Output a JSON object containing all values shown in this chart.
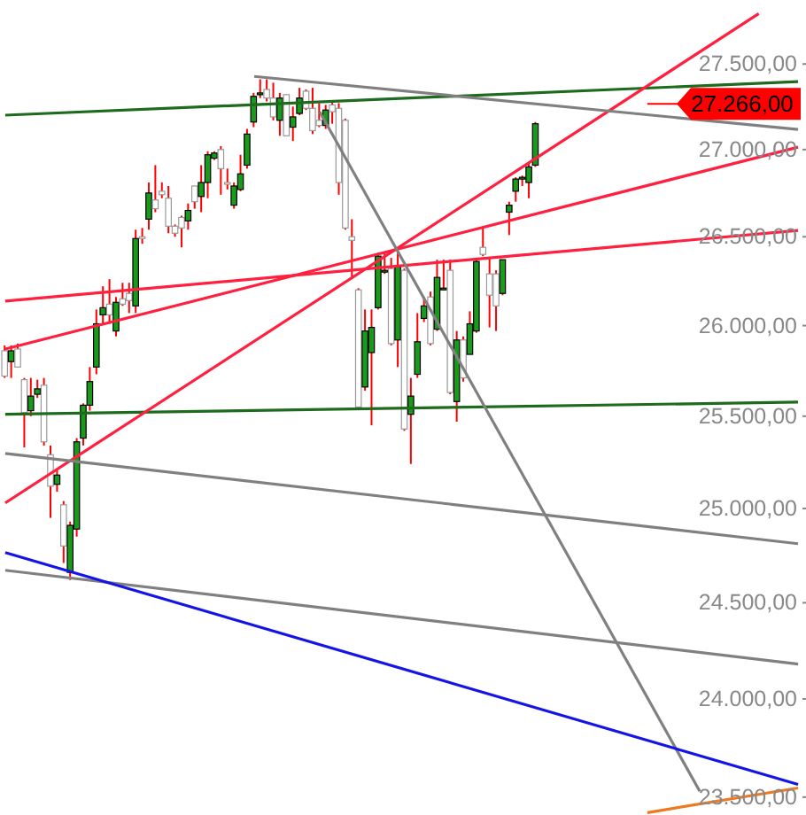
{
  "chart_data": {
    "type": "candlestick",
    "log": true,
    "grid": false,
    "legend": false,
    "tick_labels": "y",
    "categories": [
      null,
      null,
      null,
      null,
      null,
      null,
      null,
      null,
      null,
      null,
      null,
      null,
      null,
      null,
      null,
      null,
      null,
      null,
      null,
      null,
      null,
      null,
      null,
      null,
      null,
      null,
      null,
      null,
      null,
      null,
      null,
      null,
      null,
      null,
      null,
      null,
      null,
      null,
      null,
      null,
      null,
      null,
      null,
      null,
      null,
      null,
      null,
      null,
      null,
      null,
      null,
      null,
      null,
      null,
      null,
      null,
      null,
      null,
      null,
      null,
      null,
      null,
      null,
      null,
      null,
      null,
      null,
      null,
      null,
      null,
      null,
      null,
      null,
      null,
      null,
      null,
      null,
      null,
      null,
      null,
      null,
      null,
      null,
      null,
      null,
      null,
      null,
      null,
      null,
      null,
      null,
      null,
      null,
      null,
      null,
      null,
      null,
      null,
      null,
      null,
      null,
      null,
      null,
      null,
      null,
      null,
      null,
      null,
      null,
      null,
      null,
      null,
      null,
      null,
      null,
      null,
      null,
      null,
      null,
      null,
      null,
      null
    ],
    "ylim": [
      23410,
      27880
    ],
    "yticks": [
      {
        "value": 23500,
        "label": "23.500,00"
      },
      {
        "value": 24000,
        "label": "24.000,00"
      },
      {
        "value": 24500,
        "label": "24.500,00"
      },
      {
        "value": 25000,
        "label": "25.000,00"
      },
      {
        "value": 25500,
        "label": "25.500,00"
      },
      {
        "value": 26000,
        "label": "26.000,00"
      },
      {
        "value": 26500,
        "label": "26.500,00"
      },
      {
        "value": 27000,
        "label": "27.000,00"
      },
      {
        "value": 27500,
        "label": "27.500,00"
      }
    ],
    "ref_lines": [
      {
        "axis": "y",
        "value": 27266,
        "label": "27.266,00",
        "color": "#ff0000"
      }
    ],
    "series": [
      {
        "colors": [
          "#ffffff",
          "#1a9a1a",
          "#ffffff",
          "#ffffff",
          "#1a9a1a",
          "#1a9a1a",
          "#ffffff",
          "#ffffff",
          "#1a9a1a",
          "#ffffff",
          "#1a9a1a",
          "#1a9a1a",
          "#1a9a1a",
          "#1a9a1a",
          "#1a9a1a",
          "#1a9a1a",
          "#ffffff",
          "#1a9a1a",
          "#ffffff",
          "#ffffff",
          "#1a9a1a",
          "#ffffff",
          "#1a9a1a",
          "#ffffff",
          "#ffffff",
          "#ffffff",
          "#ffffff",
          "#ffffff",
          "#1a9a1a",
          "#ffffff",
          "#1a9a1a",
          "#1a9a1a",
          "#1a9a1a",
          "#ffffff",
          "#ffffff",
          "#1a9a1a",
          "#1a9a1a",
          "#1a9a1a",
          "#1a9a1a",
          "#1a9a1a",
          "#ffffff",
          "#ffffff",
          "#1a9a1a",
          "#ffffff",
          "#1a9a1a",
          "#1a9a1a",
          "#ffffff",
          "#ffffff",
          "#ffffff",
          "#1a9a1a",
          "#ffffff",
          "#ffffff",
          "#ffffff",
          "#ffffff",
          "#ffffff",
          "#1a9a1a",
          "#1a9a1a",
          "#1a9a1a",
          "#1a9a1a",
          "#ffffff",
          "#1a9a1a",
          "#ffffff",
          "#1a9a1a",
          "#1a9a1a",
          "#1a9a1a",
          "#ffffff",
          "#1a9a1a",
          "#1a9a1a",
          "#ffffff",
          "#1a9a1a",
          "#ffffff",
          "#1a9a1a",
          "#1a9a1a",
          "#ffffff",
          "#ffffff",
          "#ffffff",
          "#1a9a1a",
          "#1a9a1a",
          "#1a9a1a",
          "#1a9a1a",
          "#1a9a1a",
          "#1a9a1a",
          null,
          null,
          null,
          null,
          null,
          null,
          null,
          null,
          null,
          null,
          null,
          null,
          null,
          null,
          null,
          null,
          null,
          null,
          null,
          null,
          null,
          null,
          null,
          null,
          null,
          null,
          null,
          null,
          null,
          null,
          null,
          null,
          null,
          null,
          null,
          null,
          null,
          null,
          null,
          null
        ],
        "ohlc": [
          [
            25860,
            25890,
            25710,
            25720
          ],
          [
            25800,
            25890,
            25710,
            25860
          ],
          [
            25870,
            25900,
            25770,
            25770
          ],
          [
            25700,
            25710,
            25330,
            25520
          ],
          [
            25530,
            25710,
            25500,
            25610
          ],
          [
            25620,
            25700,
            25600,
            25650
          ],
          [
            25670,
            25710,
            25340,
            25360
          ],
          [
            25290,
            25340,
            24950,
            25120
          ],
          [
            25130,
            25210,
            25090,
            25180
          ],
          [
            25020,
            25040,
            24710,
            24800
          ],
          [
            24660,
            24930,
            24620,
            24910
          ],
          [
            24890,
            25380,
            24850,
            25360
          ],
          [
            25380,
            25570,
            25340,
            25560
          ],
          [
            25560,
            25770,
            25530,
            25690
          ],
          [
            25770,
            26090,
            25730,
            26010
          ],
          [
            26060,
            26220,
            26010,
            26100
          ],
          [
            26120,
            26260,
            26010,
            26060
          ],
          [
            25970,
            26160,
            25940,
            26130
          ],
          [
            26150,
            26240,
            26110,
            26120
          ],
          [
            26180,
            26240,
            26070,
            26140
          ],
          [
            26110,
            26540,
            26070,
            26490
          ],
          [
            26500,
            26550,
            26460,
            26490
          ],
          [
            26600,
            26810,
            26540,
            26750
          ],
          [
            26710,
            26910,
            26640,
            26660
          ],
          [
            26760,
            26810,
            26720,
            26740
          ],
          [
            26720,
            26790,
            26520,
            26560
          ],
          [
            26560,
            26570,
            26500,
            26520
          ],
          [
            26610,
            26620,
            26440,
            26550
          ],
          [
            26590,
            26690,
            26540,
            26650
          ],
          [
            26790,
            26790,
            26660,
            26700
          ],
          [
            26730,
            26910,
            26640,
            26810
          ],
          [
            26810,
            26990,
            26720,
            26970
          ],
          [
            26950,
            26990,
            26940,
            26980
          ],
          [
            27000,
            27020,
            26740,
            26890
          ],
          [
            26810,
            26890,
            26770,
            26800
          ],
          [
            26680,
            26810,
            26660,
            26790
          ],
          [
            26770,
            26970,
            26760,
            26860
          ],
          [
            26910,
            27120,
            26890,
            27090
          ],
          [
            27160,
            27330,
            27130,
            27310
          ],
          [
            27330,
            27410,
            27300,
            27330
          ],
          [
            27350,
            27410,
            27280,
            27300
          ],
          [
            27300,
            27390,
            27170,
            27190
          ],
          [
            27170,
            27330,
            27080,
            27300
          ],
          [
            27320,
            27320,
            27080,
            27080
          ],
          [
            27130,
            27250,
            27050,
            27190
          ],
          [
            27210,
            27360,
            27200,
            27300
          ],
          [
            27340,
            27350,
            27230,
            27240
          ],
          [
            27240,
            27360,
            27090,
            27110
          ],
          [
            27170,
            27270,
            27130,
            27140
          ],
          [
            27140,
            27260,
            27120,
            27230
          ],
          [
            27260,
            27280,
            27150,
            27220
          ],
          [
            27240,
            27270,
            26740,
            26810
          ],
          [
            27170,
            27180,
            26540,
            26550
          ],
          [
            26500,
            26600,
            26260,
            26480
          ],
          [
            26200,
            26210,
            25550,
            25550
          ],
          [
            25660,
            26090,
            25640,
            25970
          ],
          [
            25850,
            26090,
            25450,
            25990
          ],
          [
            26100,
            26410,
            26090,
            26390
          ],
          [
            26310,
            26410,
            26290,
            26310
          ],
          [
            26320,
            26380,
            25890,
            25900
          ],
          [
            25920,
            26410,
            25770,
            26330
          ],
          [
            26310,
            26320,
            25420,
            25430
          ],
          [
            25510,
            25710,
            25240,
            25610
          ],
          [
            25730,
            26070,
            25710,
            25910
          ],
          [
            26040,
            26160,
            26020,
            26110
          ],
          [
            26160,
            26190,
            25890,
            25900
          ],
          [
            25980,
            26370,
            25970,
            26270
          ],
          [
            26210,
            26370,
            26200,
            26210
          ],
          [
            26310,
            26370,
            25620,
            25630
          ],
          [
            25580,
            25970,
            25470,
            25920
          ],
          [
            25920,
            25940,
            25690,
            25710
          ],
          [
            25840,
            26080,
            25840,
            26010
          ],
          [
            25970,
            26380,
            25960,
            26360
          ],
          [
            26440,
            26550,
            26390,
            26400
          ],
          [
            26290,
            26380,
            25990,
            26170
          ],
          [
            26290,
            26310,
            25970,
            26110
          ],
          [
            26180,
            26370,
            26170,
            26370
          ],
          [
            26640,
            26700,
            26510,
            26680
          ],
          [
            26760,
            26840,
            26700,
            26830
          ],
          [
            26840,
            26850,
            26790,
            26840
          ],
          [
            26810,
            26920,
            26720,
            26900
          ],
          [
            26910,
            27160,
            26900,
            27150
          ],
          null,
          null,
          null,
          null,
          null,
          null,
          null,
          null,
          null,
          null,
          null,
          null,
          null,
          null,
          null,
          null,
          null,
          null,
          null,
          null,
          null,
          null,
          null,
          null,
          null,
          null,
          null,
          null,
          null,
          null,
          null,
          null,
          null,
          null,
          null,
          null,
          null,
          null,
          null,
          null
        ]
      },
      {
        "type": "line",
        "color": "#1e6b1e",
        "values": [
          27200,
          null,
          null,
          null,
          null,
          null,
          null,
          null,
          null,
          null,
          null,
          null,
          null,
          null,
          null,
          null,
          null,
          null,
          null,
          null,
          null,
          null,
          null,
          null,
          null,
          null,
          null,
          null,
          null,
          null,
          null,
          null,
          null,
          null,
          null,
          null,
          null,
          null,
          null,
          null,
          null,
          null,
          null,
          null,
          null,
          null,
          null,
          null,
          null,
          null,
          null,
          null,
          null,
          null,
          null,
          null,
          null,
          null,
          null,
          null,
          null,
          null,
          null,
          null,
          null,
          null,
          null,
          null,
          null,
          null,
          null,
          null,
          null,
          null,
          null,
          null,
          null,
          null,
          null,
          null,
          null,
          null,
          null,
          null,
          null,
          null,
          null,
          null,
          null,
          null,
          null,
          null,
          null,
          null,
          null,
          null,
          null,
          null,
          null,
          null,
          null,
          null,
          null,
          null,
          null,
          null,
          null,
          null,
          null,
          null,
          null,
          null,
          null,
          null,
          null,
          null,
          null,
          null,
          null,
          null,
          null,
          27396
        ]
      },
      {
        "type": "line",
        "color": "#1e6b1e",
        "values": [
          25510,
          null,
          null,
          null,
          null,
          null,
          null,
          null,
          null,
          null,
          null,
          null,
          null,
          null,
          null,
          null,
          null,
          null,
          null,
          null,
          null,
          null,
          null,
          null,
          null,
          null,
          null,
          null,
          null,
          null,
          null,
          null,
          null,
          null,
          null,
          null,
          null,
          null,
          null,
          null,
          null,
          null,
          null,
          null,
          null,
          null,
          null,
          null,
          null,
          null,
          null,
          null,
          null,
          null,
          null,
          null,
          null,
          null,
          null,
          null,
          null,
          null,
          null,
          null,
          null,
          null,
          null,
          null,
          null,
          null,
          null,
          null,
          null,
          null,
          null,
          null,
          null,
          null,
          null,
          null,
          null,
          null,
          null,
          null,
          null,
          null,
          null,
          null,
          null,
          null,
          null,
          null,
          null,
          null,
          null,
          null,
          null,
          null,
          null,
          null,
          null,
          null,
          null,
          null,
          null,
          null,
          null,
          null,
          null,
          null,
          null,
          null,
          null,
          null,
          null,
          null,
          null,
          null,
          null,
          null,
          null,
          25577
        ]
      },
      {
        "type": "line",
        "color": "#ff2040",
        "values": [
          25030,
          null,
          null,
          null,
          null,
          null,
          null,
          null,
          null,
          null,
          null,
          null,
          null,
          null,
          null,
          null,
          null,
          null,
          null,
          null,
          null,
          null,
          null,
          null,
          null,
          null,
          null,
          null,
          null,
          null,
          null,
          null,
          null,
          null,
          null,
          null,
          null,
          null,
          null,
          null,
          null,
          null,
          null,
          null,
          null,
          null,
          null,
          null,
          null,
          null,
          null,
          null,
          null,
          null,
          null,
          null,
          null,
          null,
          null,
          null,
          null,
          null,
          null,
          null,
          null,
          null,
          null,
          null,
          null,
          null,
          null,
          null,
          null,
          null,
          null,
          null,
          null,
          null,
          null,
          null,
          null,
          null,
          null,
          null,
          null,
          null,
          null,
          null,
          null,
          null,
          null,
          null,
          null,
          null,
          null,
          null,
          null,
          null,
          null,
          null,
          null,
          null,
          null,
          null,
          null,
          null,
          null,
          null,
          null,
          null,
          null,
          null,
          null,
          null,
          null,
          27799,
          null,
          null,
          null,
          null,
          null,
          null
        ]
      },
      {
        "type": "line",
        "color": "#ff2040",
        "values": [
          25870,
          null,
          null,
          null,
          null,
          null,
          null,
          null,
          null,
          null,
          null,
          null,
          null,
          null,
          null,
          null,
          null,
          null,
          null,
          null,
          null,
          null,
          null,
          null,
          null,
          null,
          null,
          null,
          null,
          null,
          null,
          null,
          null,
          null,
          null,
          null,
          null,
          null,
          null,
          null,
          null,
          null,
          null,
          null,
          null,
          null,
          null,
          null,
          null,
          null,
          null,
          null,
          null,
          null,
          null,
          null,
          null,
          null,
          null,
          null,
          null,
          null,
          null,
          null,
          null,
          null,
          null,
          null,
          null,
          null,
          null,
          null,
          null,
          null,
          null,
          null,
          null,
          null,
          null,
          null,
          null,
          null,
          null,
          null,
          null,
          null,
          null,
          null,
          null,
          null,
          null,
          null,
          null,
          null,
          null,
          null,
          null,
          null,
          null,
          null,
          null,
          null,
          null,
          null,
          null,
          null,
          null,
          null,
          null,
          null,
          null,
          null,
          null,
          null,
          null,
          null,
          null,
          null,
          null,
          null,
          null,
          27014
        ]
      },
      {
        "type": "line",
        "color": "#ff2040",
        "values": [
          26137,
          null,
          null,
          null,
          null,
          null,
          null,
          null,
          null,
          null,
          null,
          null,
          null,
          null,
          null,
          null,
          null,
          null,
          null,
          null,
          null,
          null,
          null,
          null,
          null,
          null,
          null,
          null,
          null,
          null,
          null,
          null,
          null,
          null,
          null,
          null,
          null,
          null,
          null,
          null,
          null,
          null,
          null,
          null,
          null,
          null,
          null,
          null,
          null,
          null,
          null,
          null,
          null,
          null,
          null,
          null,
          null,
          null,
          null,
          null,
          null,
          null,
          null,
          null,
          null,
          null,
          null,
          null,
          null,
          null,
          null,
          null,
          null,
          null,
          null,
          null,
          null,
          null,
          null,
          null,
          null,
          null,
          null,
          null,
          null,
          null,
          null,
          null,
          null,
          null,
          null,
          null,
          null,
          null,
          null,
          null,
          null,
          null,
          null,
          null,
          null,
          null,
          null,
          null,
          null,
          null,
          null,
          null,
          null,
          null,
          null,
          null,
          null,
          null,
          null,
          null,
          null,
          null,
          null,
          null,
          null,
          26536
        ]
      },
      {
        "type": "line",
        "color": "#808080",
        "values": [
          null,
          null,
          null,
          null,
          null,
          null,
          null,
          null,
          null,
          null,
          null,
          null,
          null,
          null,
          null,
          null,
          null,
          null,
          null,
          null,
          null,
          null,
          null,
          null,
          null,
          null,
          null,
          null,
          null,
          null,
          null,
          null,
          null,
          null,
          null,
          null,
          null,
          null,
          27427,
          null,
          null,
          null,
          null,
          null,
          null,
          null,
          null,
          null,
          null,
          null,
          null,
          null,
          null,
          null,
          null,
          null,
          null,
          null,
          null,
          null,
          null,
          null,
          null,
          null,
          null,
          null,
          null,
          null,
          null,
          null,
          null,
          null,
          null,
          null,
          null,
          null,
          null,
          null,
          null,
          null,
          null,
          null,
          null,
          null,
          null,
          null,
          null,
          null,
          null,
          null,
          null,
          null,
          null,
          null,
          null,
          null,
          null,
          null,
          null,
          null,
          null,
          null,
          null,
          null,
          null,
          null,
          null,
          null,
          null,
          null,
          null,
          null,
          null,
          null,
          null,
          null,
          null,
          null,
          null,
          null,
          null,
          27117
        ]
      },
      {
        "type": "line",
        "color": "#808080",
        "values": [
          null,
          null,
          null,
          null,
          null,
          null,
          null,
          null,
          null,
          null,
          null,
          null,
          null,
          null,
          null,
          null,
          null,
          null,
          null,
          null,
          null,
          null,
          null,
          null,
          null,
          null,
          null,
          null,
          null,
          null,
          null,
          null,
          null,
          null,
          null,
          null,
          null,
          null,
          null,
          null,
          null,
          null,
          null,
          null,
          null,
          null,
          null,
          null,
          27219,
          null,
          null,
          null,
          null,
          null,
          null,
          null,
          null,
          null,
          null,
          null,
          null,
          null,
          null,
          null,
          null,
          null,
          null,
          null,
          null,
          null,
          null,
          null,
          null,
          null,
          null,
          null,
          null,
          null,
          null,
          null,
          null,
          null,
          null,
          null,
          null,
          null,
          null,
          null,
          null,
          null,
          null,
          null,
          null,
          null,
          null,
          null,
          null,
          null,
          null,
          null,
          null,
          null,
          null,
          null,
          null,
          null,
          23529,
          null,
          null,
          null,
          null,
          null,
          null,
          null,
          null,
          null,
          null,
          null,
          null,
          null,
          null,
          null
        ]
      },
      {
        "type": "line",
        "color": "#808080",
        "values": [
          25297,
          null,
          null,
          null,
          null,
          null,
          null,
          null,
          null,
          null,
          null,
          null,
          null,
          null,
          null,
          null,
          null,
          null,
          null,
          null,
          null,
          null,
          null,
          null,
          null,
          null,
          null,
          null,
          null,
          null,
          null,
          null,
          null,
          null,
          null,
          null,
          null,
          null,
          null,
          null,
          null,
          null,
          null,
          null,
          null,
          null,
          null,
          null,
          null,
          null,
          null,
          null,
          null,
          null,
          null,
          null,
          null,
          null,
          null,
          null,
          null,
          null,
          null,
          null,
          null,
          null,
          null,
          null,
          null,
          null,
          null,
          null,
          null,
          null,
          null,
          null,
          null,
          null,
          null,
          null,
          null,
          null,
          null,
          null,
          null,
          null,
          null,
          null,
          null,
          null,
          null,
          null,
          null,
          null,
          null,
          null,
          null,
          null,
          null,
          null,
          null,
          null,
          null,
          null,
          null,
          null,
          null,
          null,
          null,
          null,
          null,
          null,
          null,
          null,
          null,
          null,
          null,
          null,
          null,
          null,
          null,
          24812
        ]
      },
      {
        "type": "line",
        "color": "#808080",
        "values": [
          24671,
          null,
          null,
          null,
          null,
          null,
          null,
          null,
          null,
          null,
          null,
          null,
          null,
          null,
          null,
          null,
          null,
          null,
          null,
          null,
          null,
          null,
          null,
          null,
          null,
          null,
          null,
          null,
          null,
          null,
          null,
          null,
          null,
          null,
          null,
          null,
          null,
          null,
          null,
          null,
          null,
          null,
          null,
          null,
          null,
          null,
          null,
          null,
          null,
          null,
          null,
          null,
          null,
          null,
          null,
          null,
          null,
          null,
          null,
          null,
          null,
          null,
          null,
          null,
          null,
          null,
          null,
          null,
          null,
          null,
          null,
          null,
          null,
          null,
          null,
          null,
          null,
          null,
          null,
          null,
          null,
          null,
          null,
          null,
          null,
          null,
          null,
          null,
          null,
          null,
          null,
          null,
          null,
          null,
          null,
          null,
          null,
          null,
          null,
          null,
          null,
          null,
          null,
          null,
          null,
          null,
          null,
          null,
          null,
          null,
          null,
          null,
          null,
          null,
          null,
          null,
          null,
          null,
          null,
          null,
          null,
          24180
        ]
      },
      {
        "type": "line",
        "color": "#1414e6",
        "values": [
          24765,
          null,
          null,
          null,
          null,
          null,
          null,
          null,
          null,
          null,
          null,
          null,
          null,
          null,
          null,
          null,
          null,
          null,
          null,
          null,
          null,
          null,
          null,
          null,
          null,
          null,
          null,
          null,
          null,
          null,
          null,
          null,
          null,
          null,
          null,
          null,
          null,
          null,
          null,
          null,
          null,
          null,
          null,
          null,
          null,
          null,
          null,
          null,
          null,
          null,
          null,
          null,
          null,
          null,
          null,
          null,
          null,
          null,
          null,
          null,
          null,
          null,
          null,
          null,
          null,
          null,
          null,
          null,
          null,
          null,
          null,
          null,
          null,
          null,
          null,
          null,
          null,
          null,
          null,
          null,
          null,
          null,
          null,
          null,
          null,
          null,
          null,
          null,
          null,
          null,
          null,
          null,
          null,
          null,
          null,
          null,
          null,
          null,
          null,
          null,
          null,
          null,
          null,
          null,
          null,
          null,
          null,
          null,
          null,
          null,
          null,
          null,
          null,
          null,
          null,
          null,
          null,
          null,
          null,
          null,
          null,
          23564
        ]
      },
      {
        "type": "line",
        "color": "#f07820",
        "values": [
          null,
          null,
          null,
          null,
          null,
          null,
          null,
          null,
          null,
          null,
          null,
          null,
          null,
          null,
          null,
          null,
          null,
          null,
          null,
          null,
          null,
          null,
          null,
          null,
          null,
          null,
          null,
          null,
          null,
          null,
          null,
          null,
          null,
          null,
          null,
          null,
          null,
          null,
          null,
          null,
          null,
          null,
          null,
          null,
          null,
          null,
          null,
          null,
          null,
          null,
          null,
          null,
          null,
          null,
          null,
          null,
          null,
          null,
          null,
          null,
          null,
          null,
          null,
          null,
          null,
          null,
          null,
          null,
          null,
          null,
          null,
          null,
          null,
          null,
          null,
          null,
          null,
          null,
          null,
          null,
          null,
          null,
          null,
          null,
          null,
          null,
          null,
          null,
          null,
          null,
          null,
          null,
          null,
          null,
          null,
          null,
          null,
          null,
          23422,
          null,
          null,
          null,
          null,
          null,
          null,
          null,
          null,
          null,
          null,
          null,
          null,
          null,
          null,
          null,
          null,
          null,
          null,
          null,
          null,
          null,
          null,
          23546
        ]
      }
    ]
  }
}
